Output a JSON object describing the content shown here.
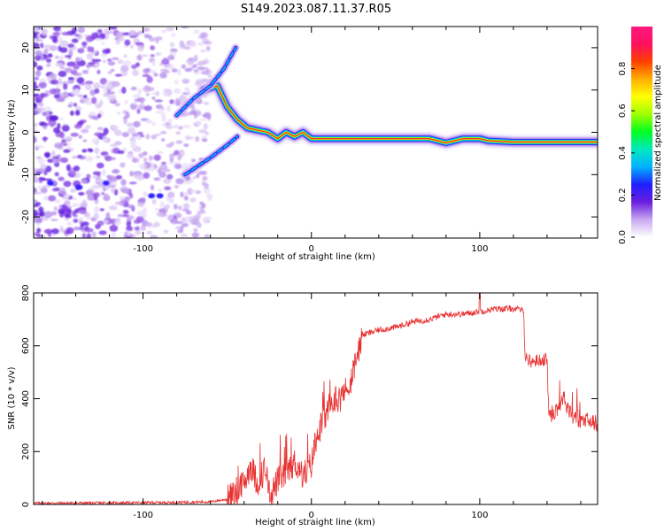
{
  "title": "S149.2023.087.11.37.R05",
  "chart_data": [
    {
      "type": "heatmap",
      "xlabel": "Height of straight line (km)",
      "ylabel": "Frequency (Hz)",
      "xlim": [
        -165,
        170
      ],
      "ylim": [
        -25,
        25
      ],
      "xticks": [
        -100,
        0,
        100
      ],
      "yticks": [
        -20,
        -10,
        0,
        10,
        20
      ],
      "colorbar": {
        "label": "Normalized spectral amplitude",
        "range": [
          0,
          1
        ],
        "ticks": [
          "0.0",
          "0.2",
          "0.4",
          "0.6",
          "0.8"
        ],
        "colormap": [
          "#ffffff",
          "#c8a8f0",
          "#6a1ee0",
          "#2020ff",
          "#00b0ff",
          "#00e8c0",
          "#00ff20",
          "#a0ff00",
          "#ffff00",
          "#ffb000",
          "#ff4000",
          "#ff1060",
          "#ff1a80"
        ]
      },
      "ridge": {
        "description": "dominant frequency track",
        "points": [
          [
            -64,
            10
          ],
          [
            -56,
            11
          ],
          [
            -50,
            6
          ],
          [
            -44,
            3
          ],
          [
            -38,
            1
          ],
          [
            -32,
            0.5
          ],
          [
            -26,
            0
          ],
          [
            -20,
            -1.5
          ],
          [
            -15,
            0
          ],
          [
            -10,
            -1
          ],
          [
            -5,
            0
          ],
          [
            0,
            -1.5
          ],
          [
            10,
            -1.5
          ],
          [
            20,
            -1.5
          ],
          [
            40,
            -1.5
          ],
          [
            60,
            -1.5
          ],
          [
            70,
            -1.5
          ],
          [
            75,
            -2
          ],
          [
            80,
            -2.5
          ],
          [
            85,
            -2
          ],
          [
            90,
            -1.5
          ],
          [
            100,
            -1.5
          ],
          [
            105,
            -2
          ],
          [
            120,
            -2.3
          ],
          [
            140,
            -2.3
          ],
          [
            170,
            -2.3
          ]
        ],
        "upper_branch": [
          [
            -80,
            4
          ],
          [
            -70,
            8
          ],
          [
            -60,
            11
          ],
          [
            -52,
            15
          ],
          [
            -45,
            20
          ]
        ],
        "lower_branch": [
          [
            -75,
            -10
          ],
          [
            -60,
            -6
          ],
          [
            -50,
            -3
          ],
          [
            -44,
            -1
          ]
        ]
      }
    },
    {
      "type": "line",
      "xlabel": "Height of straight line (km)",
      "ylabel": "SNR (10 * v/v)",
      "xlim": [
        -165,
        170
      ],
      "ylim": [
        0,
        800
      ],
      "xticks": [
        -100,
        0,
        100
      ],
      "yticks": [
        0,
        200,
        400,
        600,
        800
      ],
      "color": "#e83030",
      "series": [
        {
          "points": [
            [
              -165,
              5
            ],
            [
              -120,
              6
            ],
            [
              -80,
              8
            ],
            [
              -60,
              10
            ],
            [
              -50,
              20
            ],
            [
              -45,
              40
            ],
            [
              -40,
              80
            ],
            [
              -36,
              150
            ],
            [
              -32,
              80
            ],
            [
              -28,
              130
            ],
            [
              -24,
              40
            ],
            [
              -20,
              90
            ],
            [
              -15,
              120
            ],
            [
              -10,
              160
            ],
            [
              -5,
              110
            ],
            [
              0,
              150
            ],
            [
              3,
              260
            ],
            [
              8,
              330
            ],
            [
              14,
              400
            ],
            [
              20,
              410
            ],
            [
              26,
              520
            ],
            [
              30,
              640
            ],
            [
              40,
              660
            ],
            [
              50,
              670
            ],
            [
              60,
              690
            ],
            [
              70,
              700
            ],
            [
              80,
              720
            ],
            [
              90,
              720
            ],
            [
              100,
              730
            ],
            [
              110,
              740
            ],
            [
              120,
              740
            ],
            [
              126,
              735
            ],
            [
              127,
              560
            ],
            [
              130,
              540
            ],
            [
              140,
              550
            ],
            [
              141,
              330
            ],
            [
              145,
              360
            ],
            [
              150,
              400
            ],
            [
              155,
              340
            ],
            [
              160,
              320
            ],
            [
              170,
              305
            ]
          ]
        }
      ]
    }
  ]
}
